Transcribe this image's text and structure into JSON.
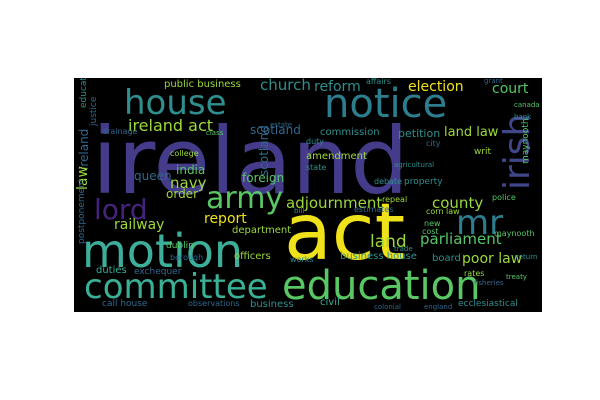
{
  "words": {
    "ireland": "ireland",
    "act": "act",
    "house": "house",
    "notice": "notice",
    "motion": "motion",
    "committee": "committee",
    "education": "education",
    "army": "army",
    "lord": "lord",
    "mr": "mr",
    "irish": "irish",
    "navy": "navy",
    "queen": "queen",
    "county": "county",
    "parliament": "parliament",
    "poor_law": "poor law",
    "land": "land",
    "report": "report",
    "railway": "railway",
    "adjournment": "adjournment",
    "ireland_act": "ireland act",
    "church": "church",
    "reform": "reform",
    "election": "election",
    "court": "court",
    "public_business": "public business",
    "scotland": "scotland",
    "india": "india",
    "foreign": "foreign",
    "order": "order",
    "department": "department",
    "duties": "duties",
    "exchequer": "exchequer",
    "officers": "officers",
    "business_house": "business house",
    "petition": "petition",
    "land_law": "land law",
    "commission": "commission",
    "amendment": "amendment",
    "law": "law",
    "civil": "civil",
    "business": "business",
    "observations": "observations",
    "dublin": "dublin",
    "board": "board",
    "bill": "bill",
    "ireland_v": "ireland",
    "maynooth": "maynooth",
    "college": "college",
    "borough": "borough",
    "postponement": "postponement",
    "justice": "justice",
    "affairs": "affairs",
    "state": "state",
    "duty": "duty",
    "debate": "debate",
    "property": "property",
    "repeal": "repeal",
    "corn_law": "corn law",
    "cost": "cost",
    "new": "new",
    "police": "police",
    "city": "city",
    "writ": "writ",
    "rates": "rates",
    "works": "works",
    "ecclesiastical": "ecclesiastical",
    "call_house": "call house",
    "drainage": "drainage",
    "class": "class",
    "estimates": "estimates",
    "agricultural": "agricultural",
    "treaty": "treaty",
    "canada": "canada",
    "fisheries": "fisheries",
    "grant": "grant",
    "return": "return",
    "trade": "trade",
    "bank": "bank",
    "colonial": "colonial",
    "england": "england",
    "education_v": "education",
    "estate": "estate"
  },
  "colors": {
    "page_background": "#ffffff",
    "cloud_background": "#000000",
    "yellow": "#f3e51f",
    "indigo": "#3f3d8b",
    "purple": "#46237a",
    "teal": "#2a8a8b",
    "teal_light": "#3bb39a",
    "green": "#56c667",
    "lime": "#9cd93b",
    "blue": "#31688e"
  }
}
